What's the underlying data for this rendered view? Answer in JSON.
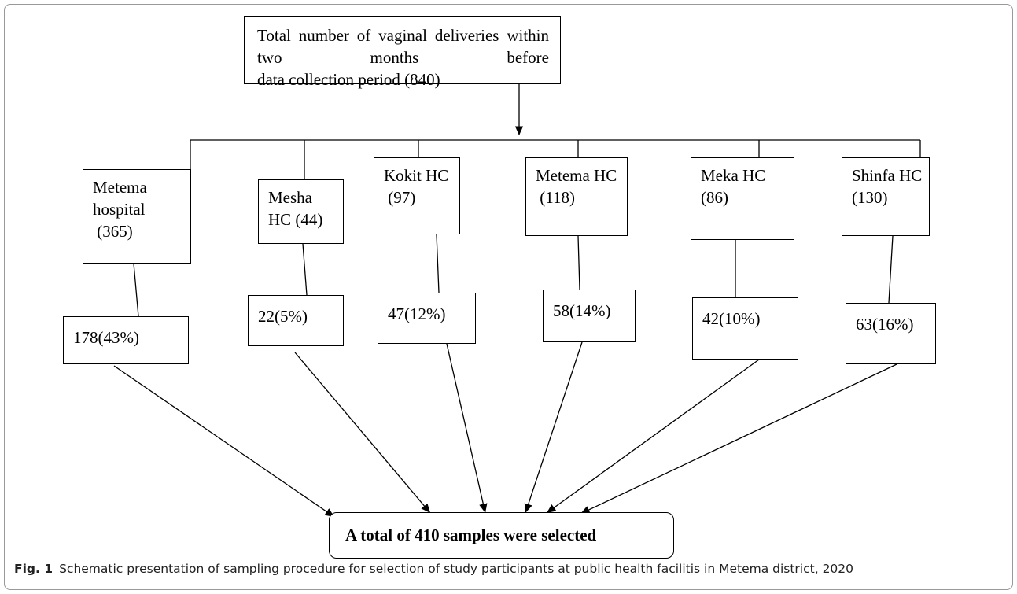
{
  "top": {
    "lines": [
      "Total number of vaginal deliveries within two months before",
      "data collection period (840)"
    ]
  },
  "facilities": [
    {
      "lines": [
        "Metema",
        "hospital",
        " (365)"
      ],
      "sample": "178(43%)"
    },
    {
      "lines": [
        "Mesha",
        "HC (44)"
      ],
      "sample": "22(5%)"
    },
    {
      "lines": [
        "Kokit HC",
        " (97)"
      ],
      "sample": "47(12%)"
    },
    {
      "lines": [
        "Metema HC",
        " (118)"
      ],
      "sample": "58(14%)"
    },
    {
      "lines": [
        "Meka HC",
        "(86)"
      ],
      "sample": "42(10%)"
    },
    {
      "lines": [
        "Shinfa HC",
        "(130)"
      ],
      "sample": "63(16%)"
    }
  ],
  "final": "A total of 410 samples were selected",
  "caption": {
    "label": "Fig. 1",
    "text": "Schematic presentation of sampling procedure for selection of study participants at public health facilitis in Metema district, 2020"
  }
}
